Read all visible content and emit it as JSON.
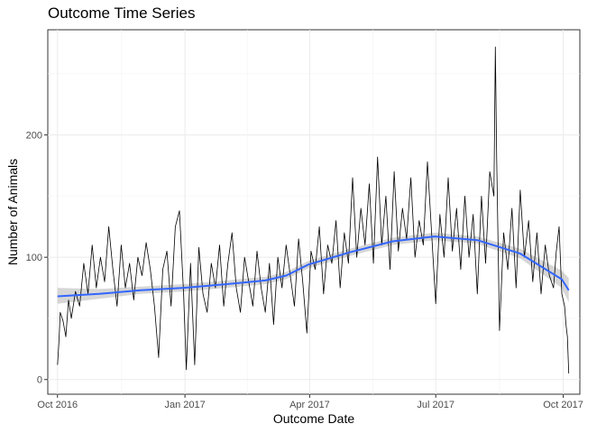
{
  "chart_data": {
    "type": "line",
    "title": "Outcome Time Series",
    "xlabel": "Outcome Date",
    "ylabel": "Number of Animals",
    "x_ticks": [
      {
        "date": "2016-10-01",
        "label": "Oct 2016"
      },
      {
        "date": "2017-01-01",
        "label": "Jan 2017"
      },
      {
        "date": "2017-04-01",
        "label": "Apr 2017"
      },
      {
        "date": "2017-07-01",
        "label": "Jul 2017"
      },
      {
        "date": "2017-10-01",
        "label": "Oct 2017"
      }
    ],
    "y_ticks": [
      0,
      100,
      200
    ],
    "xlim": [
      "2016-09-24",
      "2017-10-13"
    ],
    "ylim": [
      -12,
      286
    ],
    "grid": true,
    "series": [
      {
        "kind": "daily",
        "color": "#000000",
        "points": [
          [
            "2016-10-01",
            12
          ],
          [
            "2016-10-02",
            30
          ],
          [
            "2016-10-03",
            55
          ],
          [
            "2016-10-05",
            48
          ],
          [
            "2016-10-07",
            35
          ],
          [
            "2016-10-09",
            65
          ],
          [
            "2016-10-11",
            50
          ],
          [
            "2016-10-14",
            72
          ],
          [
            "2016-10-17",
            60
          ],
          [
            "2016-10-20",
            95
          ],
          [
            "2016-10-23",
            70
          ],
          [
            "2016-10-26",
            110
          ],
          [
            "2016-10-29",
            75
          ],
          [
            "2016-11-01",
            100
          ],
          [
            "2016-11-04",
            80
          ],
          [
            "2016-11-07",
            125
          ],
          [
            "2016-11-10",
            90
          ],
          [
            "2016-11-13",
            60
          ],
          [
            "2016-11-16",
            110
          ],
          [
            "2016-11-19",
            75
          ],
          [
            "2016-11-22",
            95
          ],
          [
            "2016-11-25",
            65
          ],
          [
            "2016-11-28",
            100
          ],
          [
            "2016-12-01",
            85
          ],
          [
            "2016-12-04",
            112
          ],
          [
            "2016-12-07",
            90
          ],
          [
            "2016-12-10",
            60
          ],
          [
            "2016-12-13",
            18
          ],
          [
            "2016-12-16",
            90
          ],
          [
            "2016-12-19",
            105
          ],
          [
            "2016-12-22",
            60
          ],
          [
            "2016-12-25",
            125
          ],
          [
            "2016-12-28",
            138
          ],
          [
            "2016-12-31",
            70
          ],
          [
            "2017-01-02",
            8
          ],
          [
            "2017-01-05",
            95
          ],
          [
            "2017-01-08",
            12
          ],
          [
            "2017-01-11",
            108
          ],
          [
            "2017-01-14",
            70
          ],
          [
            "2017-01-17",
            55
          ],
          [
            "2017-01-20",
            95
          ],
          [
            "2017-01-23",
            75
          ],
          [
            "2017-01-26",
            110
          ],
          [
            "2017-01-29",
            60
          ],
          [
            "2017-02-01",
            95
          ],
          [
            "2017-02-04",
            120
          ],
          [
            "2017-02-07",
            75
          ],
          [
            "2017-02-10",
            55
          ],
          [
            "2017-02-13",
            100
          ],
          [
            "2017-02-16",
            80
          ],
          [
            "2017-02-19",
            60
          ],
          [
            "2017-02-22",
            105
          ],
          [
            "2017-02-25",
            75
          ],
          [
            "2017-02-28",
            55
          ],
          [
            "2017-03-03",
            95
          ],
          [
            "2017-03-06",
            45
          ],
          [
            "2017-03-09",
            100
          ],
          [
            "2017-03-12",
            75
          ],
          [
            "2017-03-15",
            110
          ],
          [
            "2017-03-18",
            85
          ],
          [
            "2017-03-21",
            60
          ],
          [
            "2017-03-24",
            115
          ],
          [
            "2017-03-27",
            80
          ],
          [
            "2017-03-30",
            38
          ],
          [
            "2017-04-02",
            105
          ],
          [
            "2017-04-05",
            90
          ],
          [
            "2017-04-08",
            125
          ],
          [
            "2017-04-11",
            70
          ],
          [
            "2017-04-14",
            110
          ],
          [
            "2017-04-17",
            95
          ],
          [
            "2017-04-20",
            130
          ],
          [
            "2017-04-23",
            75
          ],
          [
            "2017-04-26",
            120
          ],
          [
            "2017-04-29",
            95
          ],
          [
            "2017-05-02",
            165
          ],
          [
            "2017-05-05",
            100
          ],
          [
            "2017-05-08",
            140
          ],
          [
            "2017-05-11",
            110
          ],
          [
            "2017-05-14",
            160
          ],
          [
            "2017-05-17",
            95
          ],
          [
            "2017-05-20",
            182
          ],
          [
            "2017-05-23",
            110
          ],
          [
            "2017-05-26",
            150
          ],
          [
            "2017-05-29",
            90
          ],
          [
            "2017-06-01",
            170
          ],
          [
            "2017-06-04",
            105
          ],
          [
            "2017-06-07",
            140
          ],
          [
            "2017-06-10",
            115
          ],
          [
            "2017-06-13",
            165
          ],
          [
            "2017-06-16",
            100
          ],
          [
            "2017-06-19",
            130
          ],
          [
            "2017-06-22",
            110
          ],
          [
            "2017-06-25",
            178
          ],
          [
            "2017-06-28",
            120
          ],
          [
            "2017-07-01",
            62
          ],
          [
            "2017-07-04",
            135
          ],
          [
            "2017-07-07",
            100
          ],
          [
            "2017-07-10",
            165
          ],
          [
            "2017-07-13",
            105
          ],
          [
            "2017-07-16",
            140
          ],
          [
            "2017-07-19",
            90
          ],
          [
            "2017-07-22",
            150
          ],
          [
            "2017-07-25",
            100
          ],
          [
            "2017-07-28",
            135
          ],
          [
            "2017-07-31",
            70
          ],
          [
            "2017-08-03",
            150
          ],
          [
            "2017-08-06",
            95
          ],
          [
            "2017-08-09",
            170
          ],
          [
            "2017-08-12",
            150
          ],
          [
            "2017-08-13",
            272
          ],
          [
            "2017-08-14",
            180
          ],
          [
            "2017-08-16",
            40
          ],
          [
            "2017-08-19",
            120
          ],
          [
            "2017-08-22",
            90
          ],
          [
            "2017-08-25",
            140
          ],
          [
            "2017-08-28",
            75
          ],
          [
            "2017-08-31",
            155
          ],
          [
            "2017-09-03",
            100
          ],
          [
            "2017-09-06",
            130
          ],
          [
            "2017-09-09",
            80
          ],
          [
            "2017-09-12",
            120
          ],
          [
            "2017-09-15",
            70
          ],
          [
            "2017-09-18",
            110
          ],
          [
            "2017-09-21",
            85
          ],
          [
            "2017-09-24",
            75
          ],
          [
            "2017-09-26",
            105
          ],
          [
            "2017-09-28",
            125
          ],
          [
            "2017-09-30",
            70
          ],
          [
            "2017-10-02",
            60
          ],
          [
            "2017-10-03",
            45
          ],
          [
            "2017-10-04",
            35
          ],
          [
            "2017-10-05",
            5
          ]
        ]
      },
      {
        "kind": "smooth",
        "color": "#3366FF",
        "band_color": "#999999",
        "points": [
          [
            "2016-10-01",
            68,
            62,
            75
          ],
          [
            "2016-10-31",
            70,
            66,
            74
          ],
          [
            "2016-11-30",
            73,
            70,
            76
          ],
          [
            "2016-12-31",
            75,
            72,
            78
          ],
          [
            "2017-01-31",
            78,
            75,
            81
          ],
          [
            "2017-02-28",
            81,
            78,
            84
          ],
          [
            "2017-03-15",
            85,
            82,
            88
          ],
          [
            "2017-03-31",
            94,
            91,
            97
          ],
          [
            "2017-04-30",
            104,
            101,
            107
          ],
          [
            "2017-05-31",
            113,
            110,
            116
          ],
          [
            "2017-06-30",
            117,
            114,
            120
          ],
          [
            "2017-07-31",
            114,
            111,
            117
          ],
          [
            "2017-08-31",
            103,
            99,
            107
          ],
          [
            "2017-09-30",
            82,
            75,
            89
          ],
          [
            "2017-10-05",
            73,
            63,
            83
          ]
        ]
      }
    ]
  }
}
